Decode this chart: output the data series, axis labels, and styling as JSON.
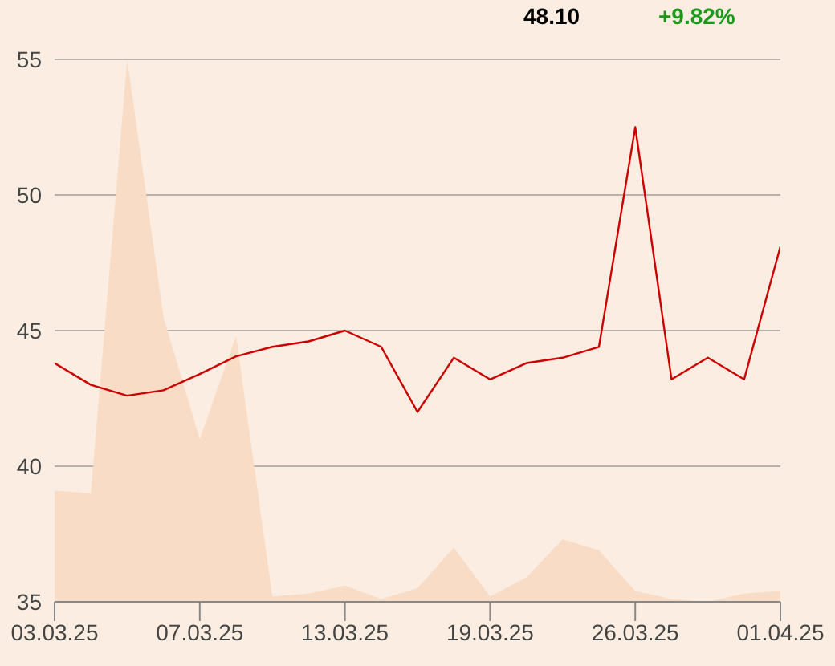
{
  "chart_data": {
    "type": "line",
    "categories": [
      "03.03.25",
      null,
      null,
      null,
      "07.03.25",
      null,
      null,
      null,
      "13.03.25",
      null,
      null,
      null,
      "19.03.25",
      null,
      null,
      null,
      "26.03.25",
      null,
      null,
      null,
      "01.04.25"
    ],
    "series": [
      {
        "type": "area",
        "color": "#f8dcc6",
        "values": [
          39.1,
          39.0,
          55.0,
          45.5,
          41.0,
          44.8,
          35.2,
          35.3,
          35.6,
          35.1,
          35.5,
          37.0,
          35.2,
          35.9,
          37.3,
          36.9,
          35.4,
          35.1,
          35.0,
          35.3,
          35.4
        ]
      },
      {
        "color": "#cc0000",
        "values": [
          43.8,
          43.0,
          42.6,
          42.8,
          43.4,
          44.05,
          44.4,
          44.6,
          45.0,
          44.4,
          42.0,
          44.0,
          43.2,
          43.8,
          44.0,
          44.4,
          52.5,
          43.2,
          44.0,
          43.2,
          48.1
        ]
      }
    ],
    "ylim": [
      35,
      55
    ],
    "yticks": [
      35,
      40,
      45,
      50,
      55
    ],
    "grid": "y",
    "marker": "none",
    "annotations": [
      "48.10",
      "+9.82%"
    ]
  }
}
